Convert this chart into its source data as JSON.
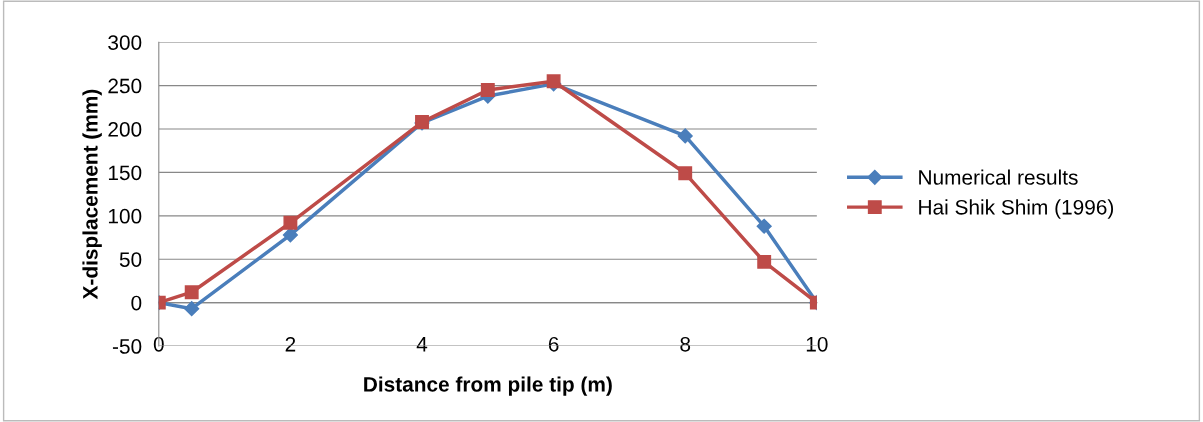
{
  "chart_data": {
    "type": "line",
    "xlabel": "Distance from pile tip (m)",
    "ylabel": "X-displacement (mm)",
    "xlim": [
      0,
      10
    ],
    "xticks": [
      0,
      2,
      4,
      6,
      8,
      10
    ],
    "ylim": [
      -50,
      300
    ],
    "yticks": [
      -50,
      0,
      50,
      100,
      150,
      200,
      250,
      300
    ],
    "grid": "y",
    "legend": "right",
    "line_style": "solid",
    "series": [
      {
        "name": "Numerical results",
        "color": "#4a7ebb",
        "marker": "diamond",
        "x": [
          0,
          0.5,
          2,
          4,
          5,
          6,
          8,
          9.2,
          10
        ],
        "values": [
          0,
          -7,
          78,
          207,
          238,
          252,
          192,
          88,
          0
        ]
      },
      {
        "name": "Hai Shik Shim (1996)",
        "color": "#be4b48",
        "marker": "square",
        "x": [
          0,
          0.5,
          2,
          4,
          5,
          6,
          8,
          9.2,
          10
        ],
        "values": [
          0,
          12,
          92,
          208,
          245,
          255,
          149,
          47,
          0
        ]
      }
    ]
  }
}
